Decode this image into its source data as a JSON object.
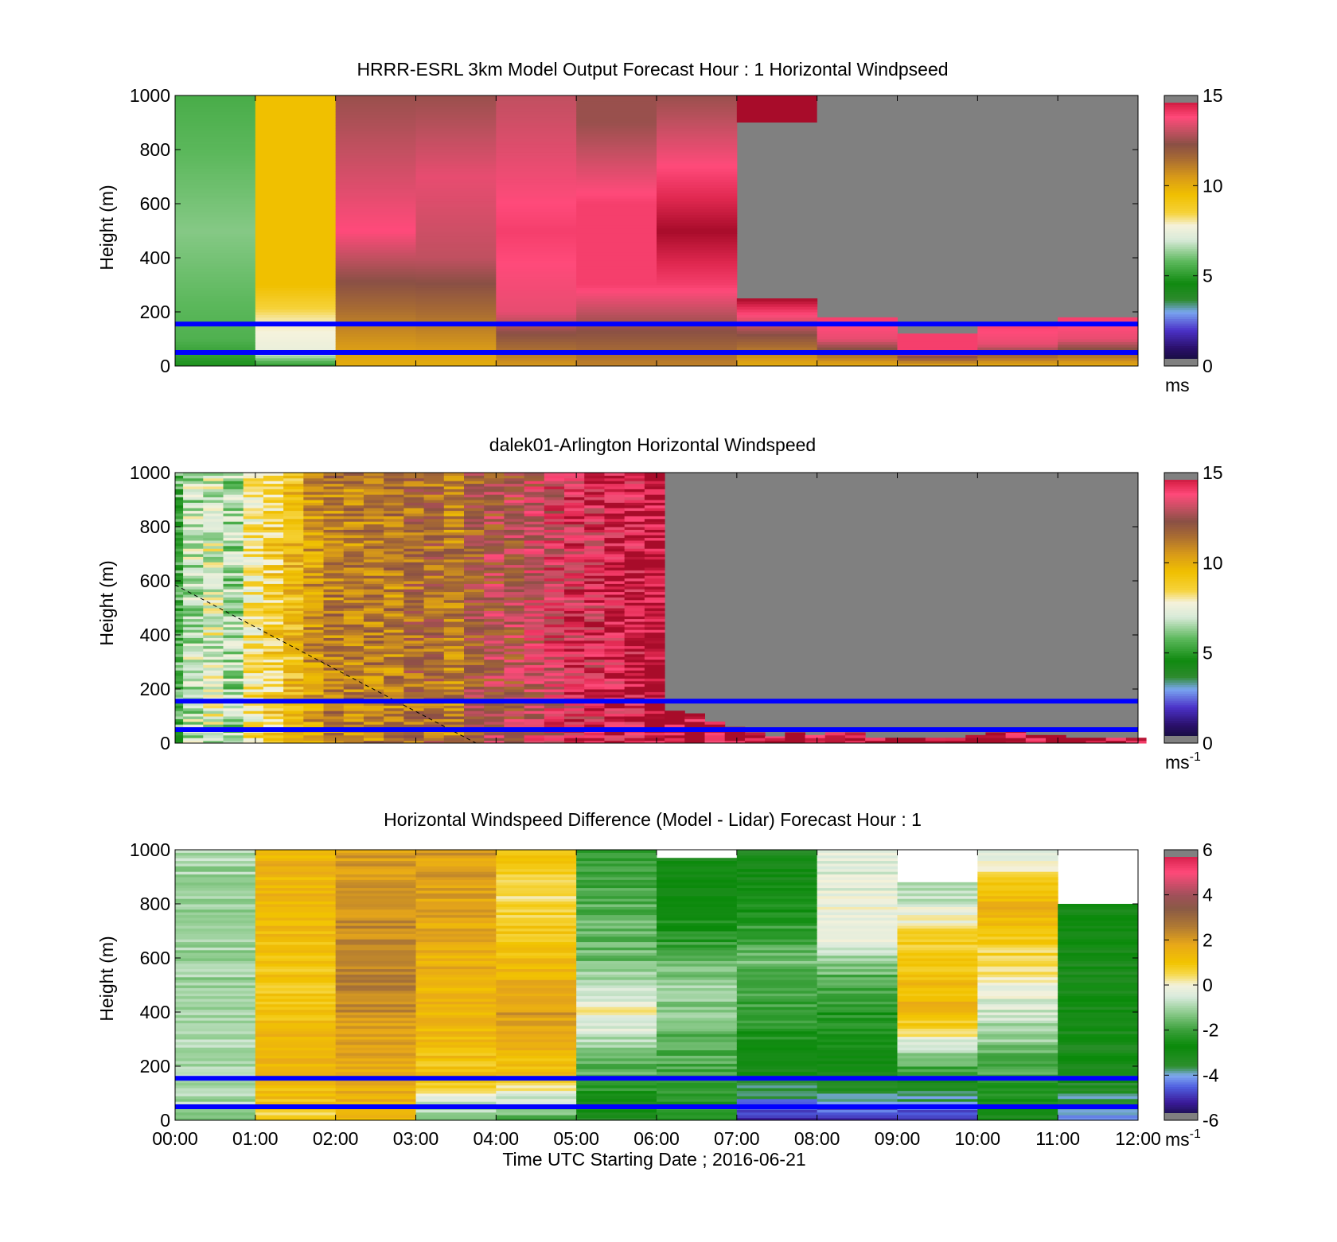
{
  "figure": {
    "xaxis_title": "Time UTC  Starting Date ; 2016-06-21",
    "x_tick_labels": [
      "00:00",
      "01:00",
      "02:00",
      "03:00",
      "04:00",
      "05:00",
      "06:00",
      "07:00",
      "08:00",
      "09:00",
      "10:00",
      "11:00",
      "12:00"
    ],
    "y_tick_labels": [
      "0",
      "200",
      "400",
      "600",
      "800",
      "1000"
    ],
    "reference_line_color": "#0000ff",
    "reference_lines_m": [
      50,
      155
    ]
  },
  "chart_data": [
    {
      "type": "heatmap",
      "title": "HRRR-ESRL 3km Model Output   Forecast Hour : 1 Horizontal Windpseed",
      "ylabel": "Height (m)",
      "xlim": [
        0,
        12
      ],
      "ylim": [
        0,
        1000
      ],
      "colorbar": {
        "range": [
          0,
          15
        ],
        "ticks": [
          "0",
          "5",
          "10",
          "15"
        ],
        "unit": "ms"
      },
      "no_data_color": "#808080",
      "columns": [
        {
          "hour": 0,
          "profile": [
            [
              0,
              4.8
            ],
            [
              100,
              5.6
            ],
            [
              500,
              6.2
            ],
            [
              1000,
              5.5
            ]
          ]
        },
        {
          "hour": 1,
          "profile": [
            [
              0,
              5
            ],
            [
              60,
              7.5
            ],
            [
              170,
              8
            ],
            [
              300,
              9.5
            ],
            [
              1000,
              9.5
            ]
          ]
        },
        {
          "hour": 2,
          "profile": [
            [
              0,
              10
            ],
            [
              150,
              11
            ],
            [
              500,
              13.8
            ],
            [
              1000,
              12.5
            ]
          ]
        },
        {
          "hour": 3,
          "profile": [
            [
              0,
              10
            ],
            [
              200,
              11.5
            ],
            [
              400,
              13
            ],
            [
              700,
              13.5
            ],
            [
              1000,
              12.5
            ]
          ]
        },
        {
          "hour": 4,
          "profile": [
            [
              0,
              10.5
            ],
            [
              200,
              13.5
            ],
            [
              500,
              14
            ],
            [
              1000,
              13
            ]
          ]
        },
        {
          "hour": 5,
          "profile": [
            [
              0,
              11
            ],
            [
              300,
              14
            ],
            [
              600,
              14
            ],
            [
              900,
              12.5
            ],
            [
              1000,
              12.5
            ]
          ]
        },
        {
          "hour": 6,
          "profile": [
            [
              0,
              11
            ],
            [
              300,
              14
            ],
            [
              500,
              15
            ],
            [
              1000,
              12.5
            ]
          ]
        },
        {
          "hour": 7,
          "profile": [
            [
              0,
              10
            ],
            [
              200,
              14
            ],
            [
              250,
              15
            ]
          ],
          "top_m": 250,
          "cap": {
            "from_m": 900,
            "to_m": 1000,
            "value": 15
          }
        },
        {
          "hour": 8,
          "profile": [
            [
              0,
              10
            ],
            [
              100,
              13.5
            ],
            [
              180,
              14
            ]
          ],
          "top_m": 180
        },
        {
          "hour": 9,
          "profile": [
            [
              0,
              10
            ],
            [
              60,
              14
            ],
            [
              120,
              14
            ]
          ],
          "top_m": 120
        },
        {
          "hour": 10,
          "profile": [
            [
              0,
              10
            ],
            [
              80,
              13.5
            ],
            [
              160,
              14
            ]
          ],
          "top_m": 160
        },
        {
          "hour": 11,
          "profile": [
            [
              0,
              10
            ],
            [
              100,
              13.5
            ],
            [
              180,
              14
            ]
          ],
          "top_m": 180
        }
      ]
    },
    {
      "type": "heatmap",
      "title": "dalek01-Arlington  Horizontal Windspeed",
      "ylabel": "Height (m)",
      "xlim": [
        0,
        12
      ],
      "ylim": [
        0,
        1000
      ],
      "colorbar": {
        "range": [
          0,
          15
        ],
        "ticks": [
          "0",
          "5",
          "10",
          "15"
        ],
        "unit": "ms",
        "unit_exponent": "-1"
      },
      "no_data_color": "#808080",
      "time_steps_hours": [
        0,
        0.1,
        0.35,
        0.6,
        0.85,
        1.1,
        1.35,
        1.6,
        1.85,
        2.1,
        2.35,
        2.6,
        2.85,
        3.1,
        3.35,
        3.6,
        3.85,
        4.1,
        4.35,
        4.6,
        4.85,
        5.1,
        5.35,
        5.6,
        5.85,
        6.1,
        6.35,
        6.6,
        6.85,
        7.1,
        7.35,
        7.6,
        7.85,
        8.1,
        8.35,
        8.6,
        8.85,
        9.1,
        9.35,
        9.6,
        9.85,
        10.1,
        10.35,
        10.6,
        10.85,
        11.1,
        11.35,
        11.6,
        11.85
      ],
      "column_speeds_ms": [
        5.5,
        6.8,
        7.2,
        6.5,
        8.2,
        8.8,
        9.5,
        10.5,
        11,
        11,
        11,
        11,
        11.5,
        11.5,
        11,
        12,
        12.5,
        12.5,
        13,
        13.5,
        14,
        14,
        14.5,
        14.5,
        15,
        15,
        15,
        15,
        15,
        15,
        15,
        15,
        15,
        15,
        15,
        15,
        15,
        15,
        15,
        15,
        15,
        15,
        15,
        15,
        15,
        15,
        15,
        15,
        15
      ],
      "column_top_m": [
        1000,
        1000,
        1000,
        1000,
        1000,
        1000,
        1000,
        1000,
        1000,
        1000,
        1000,
        1000,
        1000,
        1000,
        1000,
        1000,
        1000,
        1000,
        1000,
        1000,
        1000,
        1000,
        1000,
        1000,
        1000,
        120,
        110,
        80,
        60,
        40,
        25,
        40,
        30,
        40,
        40,
        20,
        20,
        20,
        20,
        20,
        30,
        40,
        50,
        30,
        30,
        20,
        20,
        20,
        20
      ],
      "reference_line": {
        "from": [
          0,
          585
        ],
        "to": [
          3.75,
          0
        ],
        "style": "dashed"
      }
    },
    {
      "type": "heatmap",
      "title": "Horizontal Windspeed Difference (Model - Lidar) Forecast Hour : 1",
      "ylabel": "Height (m)",
      "xlim": [
        0,
        12
      ],
      "ylim": [
        0,
        1000
      ],
      "colorbar": {
        "range": [
          -6,
          6
        ],
        "ticks": [
          "-6",
          "-4",
          "-2",
          "0",
          "2",
          "4",
          "6"
        ],
        "unit": "ms",
        "unit_exponent": "-1"
      },
      "columns": [
        {
          "hour": 0,
          "profile": [
            [
              0,
              -1
            ],
            [
              300,
              -1
            ],
            [
              1000,
              -1
            ]
          ],
          "top_m": 1000
        },
        {
          "hour": 1,
          "profile": [
            [
              0,
              0.5
            ],
            [
              60,
              1
            ],
            [
              160,
              1.5
            ],
            [
              500,
              1
            ],
            [
              1000,
              1.5
            ]
          ],
          "top_m": 1000
        },
        {
          "hour": 2,
          "profile": [
            [
              0,
              1.5
            ],
            [
              160,
              1.5
            ],
            [
              500,
              2.5
            ],
            [
              1000,
              2
            ]
          ],
          "top_m": 1000
        },
        {
          "hour": 3,
          "profile": [
            [
              0,
              -1.5
            ],
            [
              160,
              1
            ],
            [
              500,
              1.5
            ],
            [
              1000,
              2
            ]
          ],
          "top_m": 1000
        },
        {
          "hour": 4,
          "profile": [
            [
              0,
              -2
            ],
            [
              160,
              1
            ],
            [
              400,
              2
            ],
            [
              800,
              0.5
            ],
            [
              1000,
              1
            ]
          ],
          "top_m": 1000
        },
        {
          "hour": 5,
          "profile": [
            [
              0,
              -3.5
            ],
            [
              150,
              -2
            ],
            [
              400,
              0
            ],
            [
              600,
              -1.5
            ],
            [
              1000,
              -2
            ]
          ],
          "top_m": 1000
        },
        {
          "hour": 6,
          "profile": [
            [
              0,
              -2.5
            ],
            [
              160,
              -2
            ],
            [
              500,
              -1
            ],
            [
              700,
              -2.5
            ],
            [
              1000,
              -3
            ]
          ],
          "top_m": 970
        },
        {
          "hour": 7,
          "profile": [
            [
              0,
              -5
            ],
            [
              160,
              -3
            ],
            [
              600,
              -1.5
            ],
            [
              900,
              -3
            ],
            [
              1000,
              -3.5
            ]
          ],
          "top_m": 1000
        },
        {
          "hour": 8,
          "profile": [
            [
              0,
              -5
            ],
            [
              160,
              -3
            ],
            [
              500,
              -2
            ],
            [
              700,
              0
            ],
            [
              1000,
              -0.5
            ]
          ],
          "top_m": 1000
        },
        {
          "hour": 9,
          "profile": [
            [
              0,
              -5
            ],
            [
              160,
              -2.5
            ],
            [
              400,
              1.5
            ],
            [
              700,
              0.5
            ],
            [
              900,
              -1.5
            ]
          ],
          "top_m": 880
        },
        {
          "hour": 10,
          "profile": [
            [
              0,
              -3
            ],
            [
              160,
              -2
            ],
            [
              600,
              0.5
            ],
            [
              800,
              1.5
            ],
            [
              1000,
              -0.5
            ]
          ],
          "top_m": 1000
        },
        {
          "hour": 11,
          "profile": [
            [
              0,
              -4.5
            ],
            [
              160,
              -3
            ],
            [
              600,
              -3
            ],
            [
              800,
              -3
            ]
          ],
          "top_m": 800
        }
      ]
    }
  ]
}
